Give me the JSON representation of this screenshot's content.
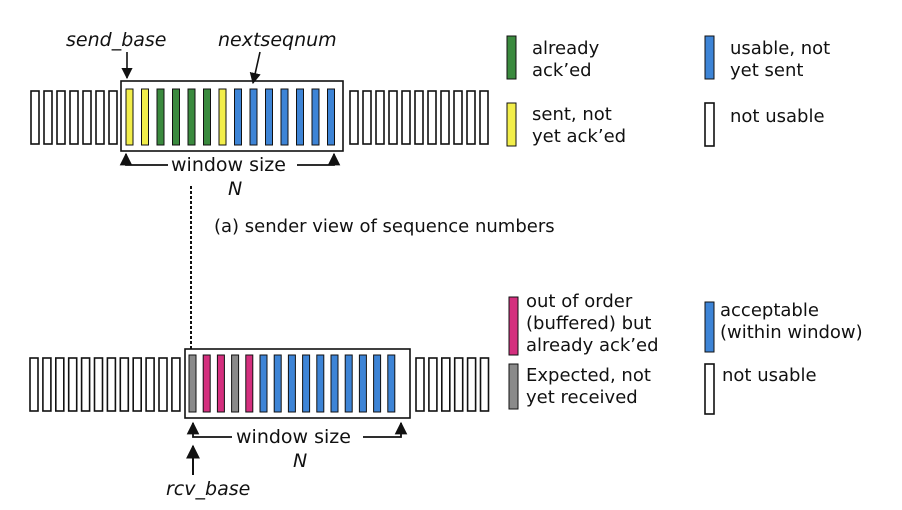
{
  "colors": {
    "acked": "#3a8a3e",
    "sent": "#f2ee4a",
    "usable": "#3d84d6",
    "not_usable": "#ffffff",
    "buffered": "#d42f7e",
    "expected": "#8a8a8a",
    "outline": "#111111"
  },
  "sender": {
    "send_base_label": "send_base",
    "nextseqnum_label": "nextseqnum",
    "window_size_label": "window size",
    "n_label": "N",
    "caption": "(a) sender view of sequence numbers",
    "left_slots": [
      "not_usable",
      "not_usable",
      "not_usable",
      "not_usable",
      "not_usable",
      "not_usable",
      "not_usable"
    ],
    "window_slots": [
      "sent",
      "sent",
      "acked",
      "acked",
      "acked",
      "acked",
      "sent",
      "usable",
      "usable",
      "usable",
      "usable",
      "usable",
      "usable",
      "usable"
    ],
    "right_slots": [
      "not_usable",
      "not_usable",
      "not_usable",
      "not_usable",
      "not_usable",
      "not_usable",
      "not_usable",
      "not_usable",
      "not_usable",
      "not_usable",
      "not_usable"
    ]
  },
  "sender_legend": [
    {
      "color": "acked",
      "line1": "already",
      "line2": "ack’ed"
    },
    {
      "color": "sent",
      "line1": "sent, not",
      "line2": "yet ack’ed"
    },
    {
      "color": "usable",
      "line1": "usable, not",
      "line2": "yet sent"
    },
    {
      "color": "not_usable",
      "line1": "not usable",
      "line2": ""
    }
  ],
  "receiver": {
    "rcv_base_label": "rcv_base",
    "window_size_label": "window size",
    "n_label": "N",
    "left_slots": [
      "not_usable",
      "not_usable",
      "not_usable",
      "not_usable",
      "not_usable",
      "not_usable",
      "not_usable",
      "not_usable",
      "not_usable",
      "not_usable",
      "not_usable",
      "not_usable"
    ],
    "window_slots": [
      "expected",
      "buffered",
      "buffered",
      "expected",
      "buffered",
      "usable",
      "usable",
      "usable",
      "usable",
      "usable",
      "usable",
      "usable",
      "usable",
      "usable",
      "usable"
    ],
    "right_slots": [
      "not_usable",
      "not_usable",
      "not_usable",
      "not_usable",
      "not_usable",
      "not_usable",
      "not_usable",
      "not_usable",
      "not_usable",
      "not_usable",
      "not_usable",
      "not_usable",
      "not_usable",
      "not_usable",
      "not_usable",
      "not_usable",
      "not_usable"
    ]
  },
  "receiver_legend": [
    {
      "color": "buffered",
      "line1": "out of order",
      "line2": "(buffered) but",
      "line3": "already ack’ed"
    },
    {
      "color": "expected",
      "line1": "Expected,  not",
      "line2": "yet received",
      "line3": ""
    },
    {
      "color": "usable",
      "line1": "acceptable",
      "line2": "(within window)",
      "line3": ""
    },
    {
      "color": "not_usable",
      "line1": "not usable",
      "line2": "",
      "line3": ""
    }
  ]
}
